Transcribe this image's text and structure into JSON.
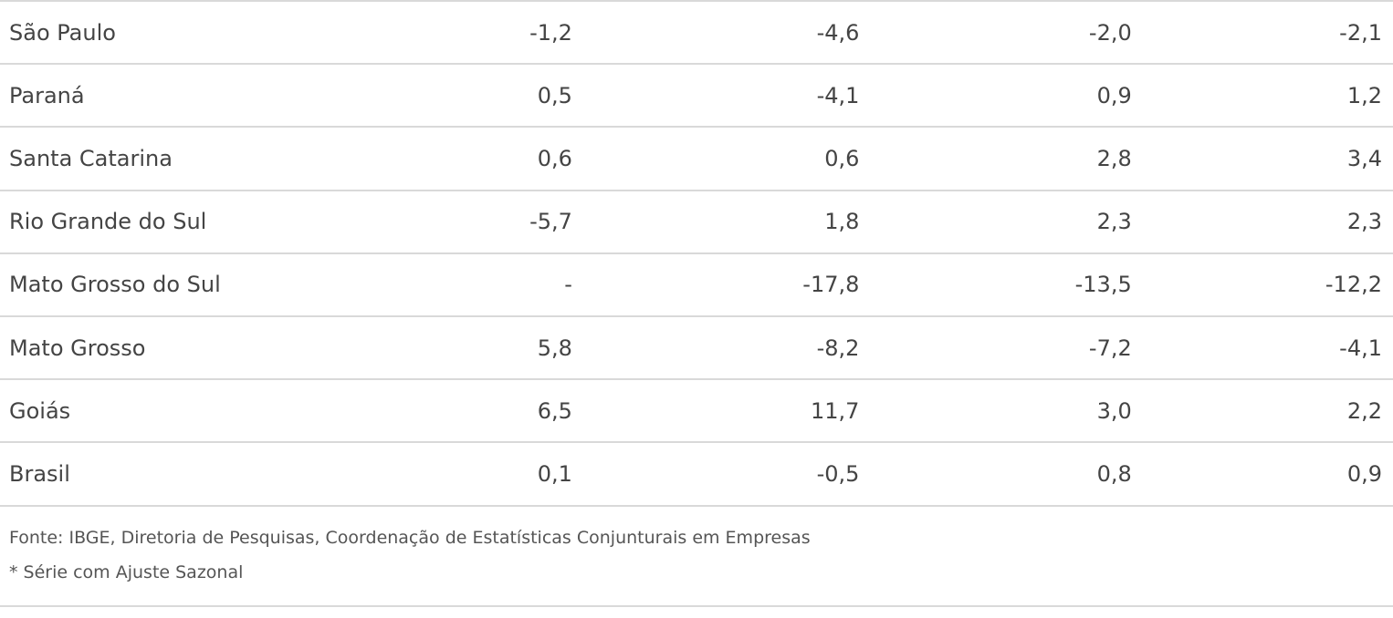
{
  "table": {
    "rows": [
      {
        "name": "São Paulo",
        "values": [
          "-1,2",
          "-4,6",
          "-2,0",
          "-2,1"
        ]
      },
      {
        "name": "Paraná",
        "values": [
          "0,5",
          "-4,1",
          "0,9",
          "1,2"
        ]
      },
      {
        "name": "Santa Catarina",
        "values": [
          "0,6",
          "0,6",
          "2,8",
          "3,4"
        ]
      },
      {
        "name": "Rio Grande do Sul",
        "values": [
          "-5,7",
          "1,8",
          "2,3",
          "2,3"
        ]
      },
      {
        "name": "Mato Grosso do Sul",
        "values": [
          "-",
          "-17,8",
          "-13,5",
          "-12,2"
        ]
      },
      {
        "name": "Mato Grosso",
        "values": [
          "5,8",
          "-8,2",
          "-7,2",
          "-4,1"
        ]
      },
      {
        "name": "Goiás",
        "values": [
          "6,5",
          "11,7",
          "3,0",
          "2,2"
        ]
      },
      {
        "name": "Brasil",
        "values": [
          "0,1",
          "-0,5",
          "0,8",
          "0,9"
        ]
      }
    ]
  },
  "footer": {
    "source": "Fonte: IBGE, Diretoria de Pesquisas, Coordenação de Estatísticas Conjunturais em Empresas",
    "note": "* Série com Ajuste Sazonal"
  }
}
